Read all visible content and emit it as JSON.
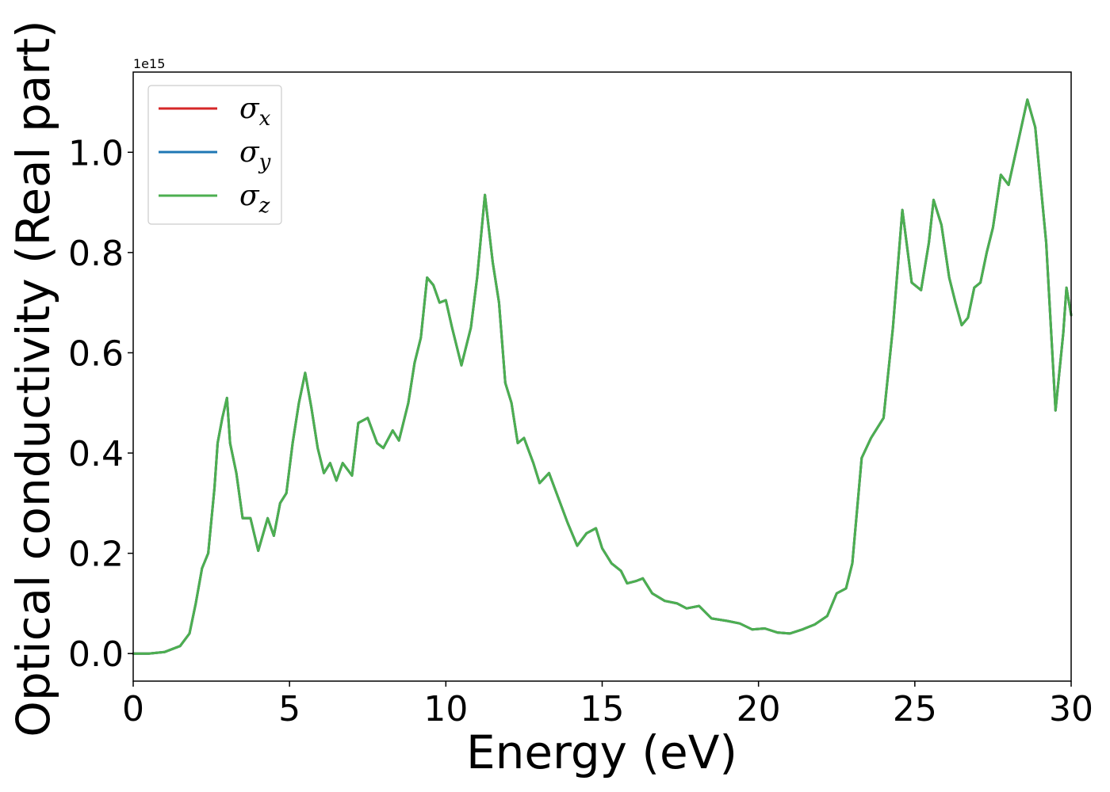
{
  "chart_data": {
    "type": "line",
    "xlabel": "Energy (eV)",
    "ylabel": "Optical conductivity (Real part)",
    "y_offset_label": "1e15",
    "xlim": [
      0,
      30
    ],
    "ylim": [
      -0.055,
      1.16
    ],
    "x_ticks": [
      0,
      5,
      10,
      15,
      20,
      25,
      30
    ],
    "x_tick_labels": [
      "0",
      "5",
      "10",
      "15",
      "20",
      "25",
      "30"
    ],
    "y_ticks": [
      0.0,
      0.2,
      0.4,
      0.6,
      0.8,
      1.0
    ],
    "y_tick_labels": [
      "0.0",
      "0.2",
      "0.4",
      "0.6",
      "0.8",
      "1.0"
    ],
    "grid": false,
    "legend_position": "top-left",
    "series": [
      {
        "name": "σx",
        "base": "σ",
        "sub": "x",
        "color": "#d62728",
        "data_ref": "shared"
      },
      {
        "name": "σy",
        "base": "σ",
        "sub": "y",
        "color": "#1f77b4",
        "data_ref": "shared"
      },
      {
        "name": "σz",
        "base": "σ",
        "sub": "z",
        "color": "#4caf50",
        "data_ref": "shared"
      }
    ],
    "shared_values": [
      [
        0,
        0.0
      ],
      [
        0.5,
        0.0
      ],
      [
        1.0,
        0.003
      ],
      [
        1.5,
        0.015
      ],
      [
        1.8,
        0.04
      ],
      [
        2.0,
        0.1
      ],
      [
        2.2,
        0.17
      ],
      [
        2.4,
        0.2
      ],
      [
        2.6,
        0.33
      ],
      [
        2.7,
        0.42
      ],
      [
        2.85,
        0.47
      ],
      [
        3.0,
        0.51
      ],
      [
        3.1,
        0.42
      ],
      [
        3.3,
        0.36
      ],
      [
        3.5,
        0.27
      ],
      [
        3.75,
        0.27
      ],
      [
        4.0,
        0.205
      ],
      [
        4.3,
        0.27
      ],
      [
        4.5,
        0.235
      ],
      [
        4.7,
        0.3
      ],
      [
        4.9,
        0.32
      ],
      [
        5.1,
        0.42
      ],
      [
        5.3,
        0.5
      ],
      [
        5.5,
        0.56
      ],
      [
        5.7,
        0.49
      ],
      [
        5.9,
        0.41
      ],
      [
        6.1,
        0.36
      ],
      [
        6.3,
        0.38
      ],
      [
        6.5,
        0.345
      ],
      [
        6.7,
        0.38
      ],
      [
        7.0,
        0.355
      ],
      [
        7.2,
        0.46
      ],
      [
        7.5,
        0.47
      ],
      [
        7.8,
        0.42
      ],
      [
        8.0,
        0.41
      ],
      [
        8.3,
        0.445
      ],
      [
        8.5,
        0.425
      ],
      [
        8.8,
        0.5
      ],
      [
        9.0,
        0.58
      ],
      [
        9.2,
        0.63
      ],
      [
        9.4,
        0.75
      ],
      [
        9.6,
        0.735
      ],
      [
        9.8,
        0.7
      ],
      [
        10.0,
        0.705
      ],
      [
        10.2,
        0.65
      ],
      [
        10.5,
        0.575
      ],
      [
        10.8,
        0.65
      ],
      [
        11.0,
        0.75
      ],
      [
        11.25,
        0.915
      ],
      [
        11.5,
        0.78
      ],
      [
        11.7,
        0.7
      ],
      [
        11.9,
        0.54
      ],
      [
        12.1,
        0.5
      ],
      [
        12.3,
        0.42
      ],
      [
        12.5,
        0.43
      ],
      [
        12.8,
        0.38
      ],
      [
        13.0,
        0.34
      ],
      [
        13.3,
        0.36
      ],
      [
        13.6,
        0.31
      ],
      [
        13.9,
        0.26
      ],
      [
        14.2,
        0.215
      ],
      [
        14.5,
        0.24
      ],
      [
        14.8,
        0.25
      ],
      [
        15.0,
        0.21
      ],
      [
        15.3,
        0.18
      ],
      [
        15.6,
        0.165
      ],
      [
        15.8,
        0.14
      ],
      [
        16.1,
        0.145
      ],
      [
        16.3,
        0.15
      ],
      [
        16.6,
        0.12
      ],
      [
        17.0,
        0.105
      ],
      [
        17.4,
        0.1
      ],
      [
        17.7,
        0.09
      ],
      [
        18.1,
        0.095
      ],
      [
        18.5,
        0.07
      ],
      [
        19.0,
        0.065
      ],
      [
        19.4,
        0.06
      ],
      [
        19.8,
        0.048
      ],
      [
        20.2,
        0.05
      ],
      [
        20.6,
        0.042
      ],
      [
        21.0,
        0.04
      ],
      [
        21.4,
        0.048
      ],
      [
        21.8,
        0.058
      ],
      [
        22.2,
        0.075
      ],
      [
        22.5,
        0.12
      ],
      [
        22.8,
        0.13
      ],
      [
        23.0,
        0.18
      ],
      [
        23.3,
        0.39
      ],
      [
        23.6,
        0.43
      ],
      [
        24.0,
        0.47
      ],
      [
        24.3,
        0.65
      ],
      [
        24.6,
        0.885
      ],
      [
        24.9,
        0.74
      ],
      [
        25.2,
        0.725
      ],
      [
        25.45,
        0.82
      ],
      [
        25.6,
        0.905
      ],
      [
        25.85,
        0.855
      ],
      [
        26.1,
        0.75
      ],
      [
        26.3,
        0.7
      ],
      [
        26.5,
        0.655
      ],
      [
        26.7,
        0.67
      ],
      [
        26.9,
        0.73
      ],
      [
        27.1,
        0.74
      ],
      [
        27.3,
        0.8
      ],
      [
        27.5,
        0.85
      ],
      [
        27.75,
        0.955
      ],
      [
        28.0,
        0.935
      ],
      [
        28.3,
        1.02
      ],
      [
        28.6,
        1.105
      ],
      [
        28.85,
        1.05
      ],
      [
        29.2,
        0.82
      ],
      [
        29.5,
        0.485
      ],
      [
        29.75,
        0.64
      ],
      [
        29.85,
        0.73
      ],
      [
        30.0,
        0.675
      ]
    ]
  }
}
